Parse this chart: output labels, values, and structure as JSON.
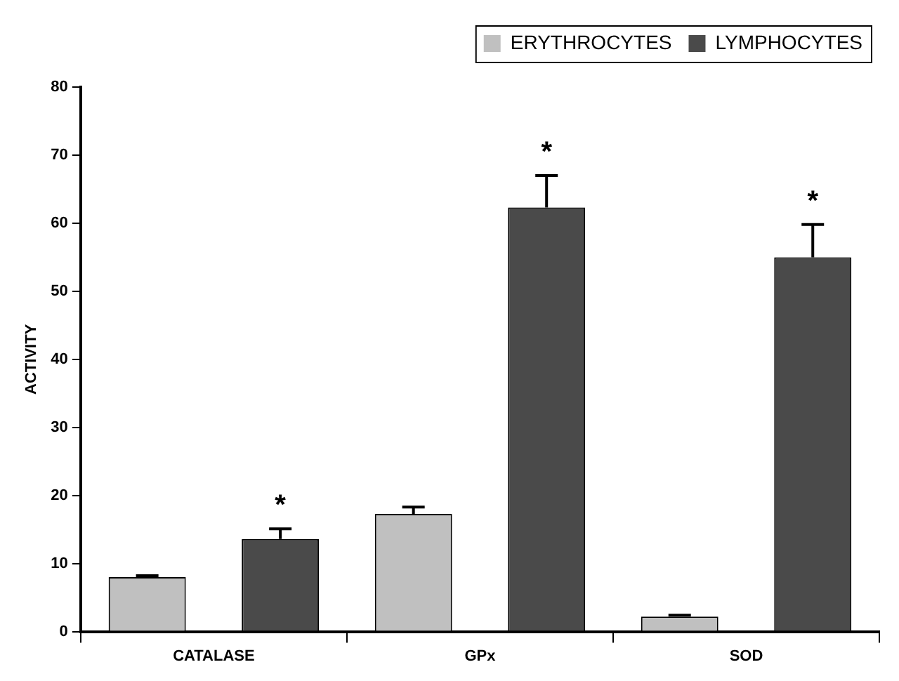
{
  "chart_data": {
    "type": "bar",
    "ylabel": "ACTIVITY",
    "categories": [
      "CATALASE",
      "GPx",
      "SOD"
    ],
    "series": [
      {
        "name": "ERYTHROCYTES",
        "color": "#c0c0c0",
        "values": [
          8.0,
          17.3,
          2.2
        ],
        "errors": [
          0.2,
          1.0,
          0.2
        ]
      },
      {
        "name": "LYMPHOCYTES",
        "color": "#4a4a4a",
        "values": [
          13.6,
          62.3,
          55.0
        ],
        "errors": [
          1.5,
          4.7,
          4.8
        ]
      }
    ],
    "ylim": [
      0,
      80
    ],
    "yticks": [
      0,
      10,
      20,
      30,
      40,
      50,
      60,
      70,
      80
    ],
    "grid": false,
    "legend": "top right",
    "annotations": [
      "*",
      "*",
      "*"
    ]
  }
}
